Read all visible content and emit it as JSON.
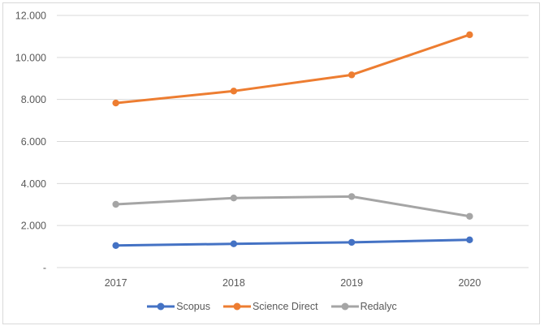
{
  "chart_data": {
    "type": "line",
    "title": "",
    "xlabel": "",
    "ylabel": "",
    "categories": [
      "2017",
      "2018",
      "2019",
      "2020"
    ],
    "series": [
      {
        "name": "Scopus",
        "color": "#4472C4",
        "values": [
          1050,
          1130,
          1200,
          1320
        ]
      },
      {
        "name": "Science Direct",
        "color": "#ED7D31",
        "values": [
          7830,
          8400,
          9170,
          11080
        ]
      },
      {
        "name": "Redalyc",
        "color": "#A5A5A5",
        "values": [
          3010,
          3310,
          3380,
          2440
        ]
      }
    ],
    "ylim": [
      0,
      12000
    ],
    "y_ticks": [
      {
        "value": 0,
        "label": "-"
      },
      {
        "value": 2000,
        "label": "2.000"
      },
      {
        "value": 4000,
        "label": "4.000"
      },
      {
        "value": 6000,
        "label": "6.000"
      },
      {
        "value": 8000,
        "label": "8.000"
      },
      {
        "value": 10000,
        "label": "10.000"
      },
      {
        "value": 12000,
        "label": "12.000"
      }
    ],
    "grid": true,
    "legend_position": "bottom",
    "marker": "circle"
  },
  "styles": {
    "background": "#FFFFFF",
    "frame_border_color": "#D9D9D9",
    "grid_color": "#D9D9D9",
    "axis_color": "#D9D9D9",
    "tick_text_color": "#595959",
    "legend_text_color": "#595959"
  }
}
